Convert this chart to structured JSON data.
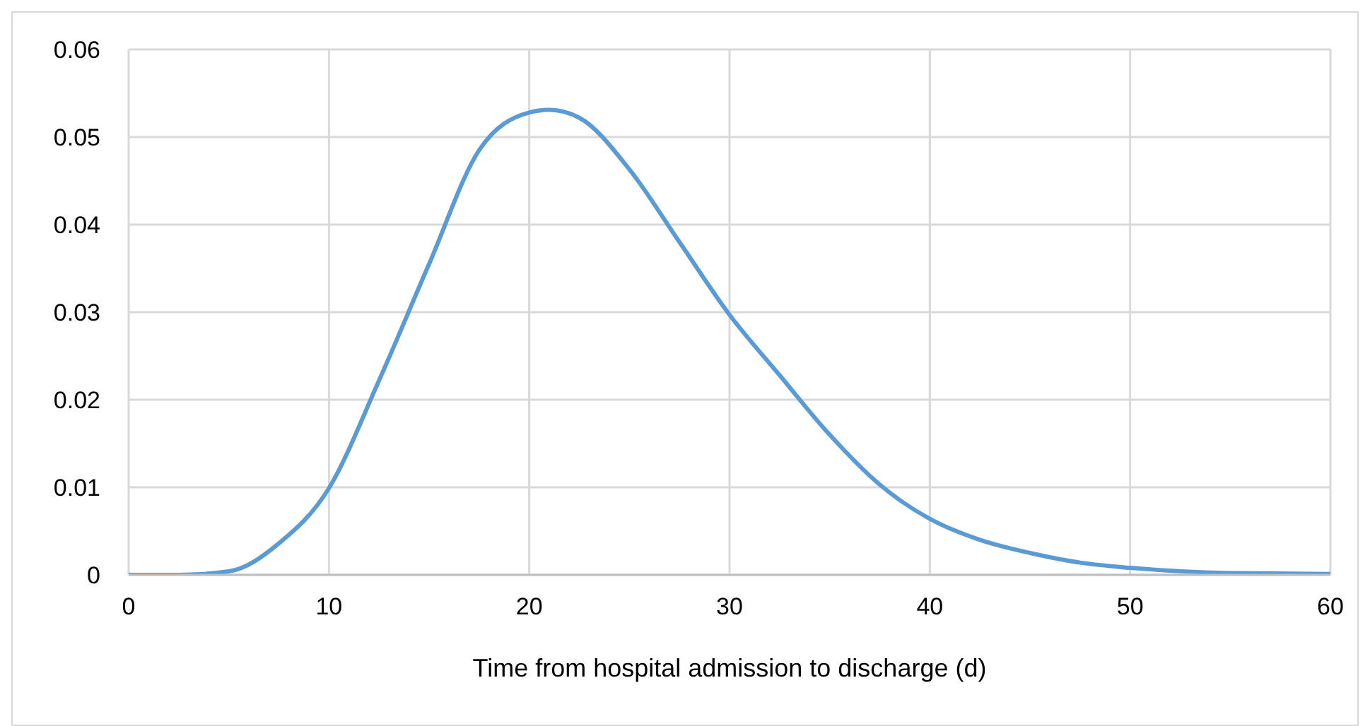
{
  "chart_data": {
    "type": "line",
    "xlabel": "Time from hospital admission to discharge (d)",
    "x": [
      0,
      2.5,
      5,
      7.5,
      10,
      12.5,
      15,
      17.5,
      20,
      21,
      22.5,
      25,
      27.5,
      30,
      32.5,
      35,
      37.5,
      40,
      42.5,
      45,
      47.5,
      50,
      55,
      60
    ],
    "series": [
      {
        "color": "#5b9bd5",
        "values": [
          0,
          0,
          0.0004,
          0.0036,
          0.0099,
          0.0222,
          0.0355,
          0.0485,
          0.0528,
          0.0531,
          0.0522,
          0.0463,
          0.038,
          0.0297,
          0.0228,
          0.016,
          0.0103,
          0.0064,
          0.004,
          0.0025,
          0.0014,
          0.0008,
          0.0002,
          0.0001
        ]
      }
    ],
    "xlim": [
      0,
      60
    ],
    "xticks": [
      0,
      10,
      20,
      30,
      40,
      50,
      60
    ],
    "ylim": [
      0,
      0.06
    ],
    "yticks": [
      0,
      0.01,
      0.02,
      0.03,
      0.04,
      0.05,
      0.06
    ],
    "grid": true,
    "marker": "none",
    "line_style": "solid"
  }
}
